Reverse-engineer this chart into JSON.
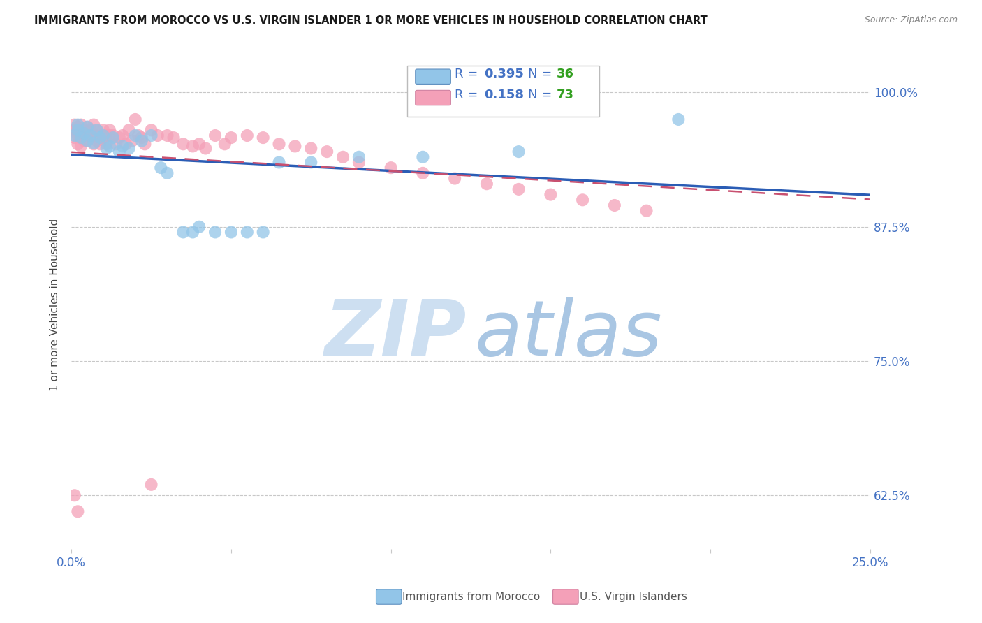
{
  "title": "IMMIGRANTS FROM MOROCCO VS U.S. VIRGIN ISLANDER 1 OR MORE VEHICLES IN HOUSEHOLD CORRELATION CHART",
  "source": "Source: ZipAtlas.com",
  "ylabel": "1 or more Vehicles in Household",
  "xlim": [
    0.0,
    0.25
  ],
  "ylim": [
    0.575,
    1.03
  ],
  "yticks": [
    0.625,
    0.75,
    0.875,
    1.0
  ],
  "yticklabels": [
    "62.5%",
    "75.0%",
    "87.5%",
    "100.0%"
  ],
  "morocco_color": "#92C5E8",
  "virgin_color": "#F4A0B8",
  "morocco_line_color": "#2B5DB5",
  "virgin_line_color": "#C85070",
  "morocco_R": 0.395,
  "morocco_N": 36,
  "virgin_R": 0.158,
  "virgin_N": 73,
  "background_color": "#FFFFFF",
  "grid_color": "#C8C8C8",
  "blue_text_color": "#4472C4",
  "green_text_color": "#33A020",
  "title_color": "#1A1A1A",
  "source_color": "#888888",
  "morocco_x": [
    0.001,
    0.002,
    0.002,
    0.003,
    0.004,
    0.005,
    0.005,
    0.006,
    0.007,
    0.008,
    0.009,
    0.01,
    0.011,
    0.012,
    0.013,
    0.015,
    0.016,
    0.018,
    0.02,
    0.022,
    0.025,
    0.028,
    0.03,
    0.035,
    0.038,
    0.04,
    0.045,
    0.05,
    0.055,
    0.06,
    0.065,
    0.075,
    0.09,
    0.11,
    0.14,
    0.19
  ],
  "morocco_y": [
    0.96,
    0.965,
    0.97,
    0.958,
    0.962,
    0.955,
    0.968,
    0.96,
    0.953,
    0.965,
    0.958,
    0.96,
    0.948,
    0.95,
    0.958,
    0.945,
    0.95,
    0.948,
    0.96,
    0.955,
    0.96,
    0.93,
    0.925,
    0.87,
    0.87,
    0.875,
    0.87,
    0.87,
    0.87,
    0.87,
    0.935,
    0.935,
    0.94,
    0.94,
    0.945,
    0.975
  ],
  "virgin_x": [
    0.001,
    0.001,
    0.001,
    0.002,
    0.002,
    0.002,
    0.003,
    0.003,
    0.003,
    0.003,
    0.004,
    0.004,
    0.004,
    0.005,
    0.005,
    0.005,
    0.006,
    0.006,
    0.007,
    0.007,
    0.007,
    0.008,
    0.008,
    0.009,
    0.009,
    0.01,
    0.01,
    0.011,
    0.011,
    0.012,
    0.012,
    0.013,
    0.014,
    0.015,
    0.016,
    0.017,
    0.018,
    0.019,
    0.02,
    0.021,
    0.022,
    0.023,
    0.025,
    0.027,
    0.03,
    0.032,
    0.035,
    0.038,
    0.04,
    0.042,
    0.045,
    0.048,
    0.05,
    0.055,
    0.06,
    0.065,
    0.07,
    0.075,
    0.08,
    0.085,
    0.09,
    0.1,
    0.11,
    0.12,
    0.13,
    0.14,
    0.15,
    0.16,
    0.17,
    0.18,
    0.001,
    0.002,
    0.025
  ],
  "virgin_y": [
    0.965,
    0.958,
    0.97,
    0.96,
    0.952,
    0.968,
    0.958,
    0.962,
    0.97,
    0.95,
    0.965,
    0.955,
    0.96,
    0.968,
    0.955,
    0.96,
    0.958,
    0.965,
    0.96,
    0.952,
    0.97,
    0.955,
    0.965,
    0.96,
    0.952,
    0.958,
    0.965,
    0.96,
    0.952,
    0.96,
    0.965,
    0.96,
    0.952,
    0.958,
    0.96,
    0.952,
    0.965,
    0.955,
    0.975,
    0.96,
    0.958,
    0.952,
    0.965,
    0.96,
    0.96,
    0.958,
    0.952,
    0.95,
    0.952,
    0.948,
    0.96,
    0.952,
    0.958,
    0.96,
    0.958,
    0.952,
    0.95,
    0.948,
    0.945,
    0.94,
    0.935,
    0.93,
    0.925,
    0.92,
    0.915,
    0.91,
    0.905,
    0.9,
    0.895,
    0.89,
    0.625,
    0.61,
    0.635
  ],
  "watermark_zip_color": "#C8DCF0",
  "watermark_atlas_color": "#A0C0E0"
}
